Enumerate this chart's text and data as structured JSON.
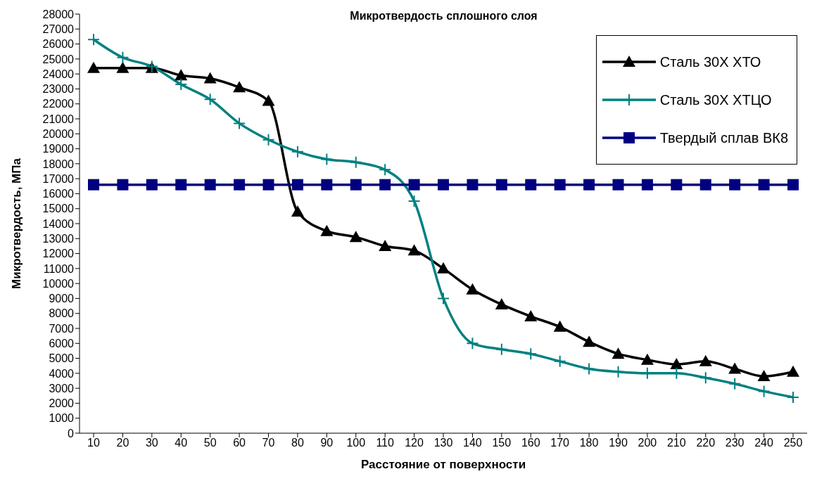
{
  "chart_data": {
    "type": "line",
    "title": "Микротвердость сплошного слоя",
    "xlabel": "Расстояние от поверхности",
    "ylabel": "Микротвердость, МПа",
    "categories": [
      "10",
      "20",
      "30",
      "40",
      "50",
      "60",
      "70",
      "80",
      "90",
      "100",
      "110",
      "120",
      "130",
      "140",
      "150",
      "160",
      "170",
      "180",
      "190",
      "200",
      "210",
      "220",
      "230",
      "240",
      "250"
    ],
    "series": [
      {
        "name": "Сталь 30Х ХТО",
        "color": "#000000",
        "marker": "triangle",
        "values": [
          24400,
          24400,
          24400,
          23900,
          23700,
          23100,
          22200,
          14800,
          13500,
          13100,
          12500,
          12200,
          11000,
          9600,
          8600,
          7800,
          7100,
          6100,
          5300,
          4900,
          4600,
          4800,
          4300,
          3800,
          4100
        ]
      },
      {
        "name": "Сталь 30Х ХТЦО",
        "color": "#008080",
        "marker": "cross",
        "values": [
          26300,
          25100,
          24500,
          23300,
          22300,
          20700,
          19600,
          18800,
          18300,
          18100,
          17600,
          15500,
          9000,
          6000,
          5600,
          5300,
          4800,
          4300,
          4100,
          4000,
          4000,
          3700,
          3300,
          2800,
          2400
        ]
      },
      {
        "name": "Твердый сплав ВК8",
        "color": "#000080",
        "marker": "square",
        "values": [
          16600,
          16600,
          16600,
          16600,
          16600,
          16600,
          16600,
          16600,
          16600,
          16600,
          16600,
          16600,
          16600,
          16600,
          16600,
          16600,
          16600,
          16600,
          16600,
          16600,
          16600,
          16600,
          16600,
          16600,
          16600
        ]
      }
    ],
    "ylim": [
      0,
      28000
    ],
    "yticks": [
      0,
      1000,
      2000,
      3000,
      4000,
      5000,
      6000,
      7000,
      8000,
      9000,
      10000,
      11000,
      12000,
      13000,
      14000,
      15000,
      16000,
      17000,
      18000,
      19000,
      20000,
      21000,
      22000,
      23000,
      24000,
      25000,
      26000,
      27000,
      28000
    ],
    "grid": false,
    "legend": "top right"
  }
}
